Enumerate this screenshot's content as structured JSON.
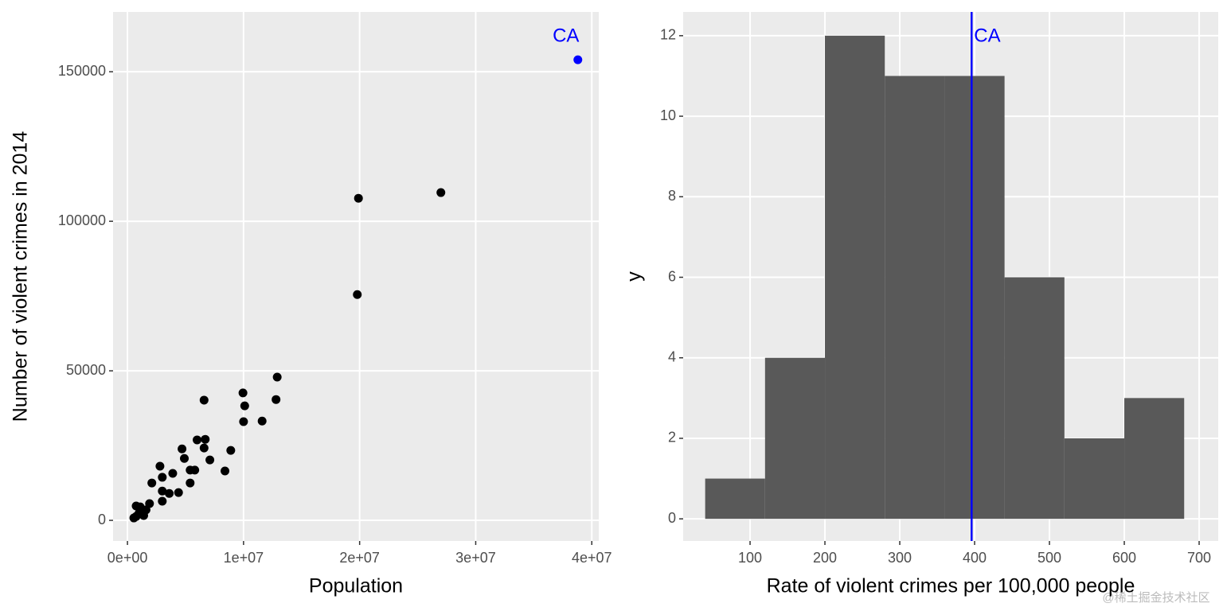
{
  "chart_data": [
    {
      "type": "scatter",
      "x_label": "Population",
      "y_label": "Number of violent crimes in 2014",
      "x": [
        27000000,
        19900000,
        19800000,
        12900000,
        12800000,
        9950000,
        10100000,
        10000000,
        11600000,
        6600000,
        8900000,
        8400000,
        7100000,
        6700000,
        6000000,
        6600000,
        4700000,
        4900000,
        5800000,
        5400000,
        5400000,
        3900000,
        2800000,
        3000000,
        2100000,
        4400000,
        3600000,
        3000000,
        3000000,
        1900000,
        1600000,
        1100000,
        750000,
        1400000,
        750000,
        550000,
        1000000
      ],
      "values": [
        109600,
        107700,
        75500,
        47900,
        40400,
        42600,
        38300,
        33000,
        33200,
        40200,
        23400,
        16500,
        20200,
        27100,
        26900,
        24200,
        23900,
        20700,
        16800,
        16800,
        12500,
        15700,
        18100,
        14400,
        12500,
        9300,
        9000,
        9800,
        6400,
        5600,
        3500,
        4500,
        4800,
        1600,
        1300,
        800,
        2400
      ],
      "color": "#000000",
      "highlight": {
        "label": "CA",
        "x": 38800000,
        "value": 154000,
        "color": "#0000ff"
      },
      "xlim": [
        -1240000,
        40600000
      ],
      "xticks": [
        {
          "value": 0,
          "label": "0e+00"
        },
        {
          "value": 10000000,
          "label": "1e+07"
        },
        {
          "value": 20000000,
          "label": "2e+07"
        },
        {
          "value": 30000000,
          "label": "3e+07"
        },
        {
          "value": 40000000,
          "label": "4e+07"
        }
      ],
      "ylim": [
        -6900,
        170000
      ],
      "yticks": [
        0,
        50000,
        100000,
        150000
      ],
      "grid": true
    },
    {
      "type": "histogram",
      "x_label": "Rate of violent crimes per 100,000 people",
      "y_label": "y",
      "bins": [
        40,
        120,
        200,
        280,
        360,
        440,
        520,
        600,
        680
      ],
      "values": [
        1,
        4,
        12,
        11,
        11,
        6,
        2,
        3
      ],
      "color": "#595959",
      "vline": {
        "value": 396,
        "label": "CA",
        "color": "#0000ff"
      },
      "xlim": [
        10.6,
        725.5
      ],
      "xticks": [
        100,
        200,
        300,
        400,
        500,
        600,
        700
      ],
      "ylim": [
        -0.55,
        12.59
      ],
      "yticks": [
        0,
        2,
        4,
        6,
        8,
        10,
        12
      ],
      "grid": true
    }
  ],
  "watermark": "@稀土掘金技术社区"
}
